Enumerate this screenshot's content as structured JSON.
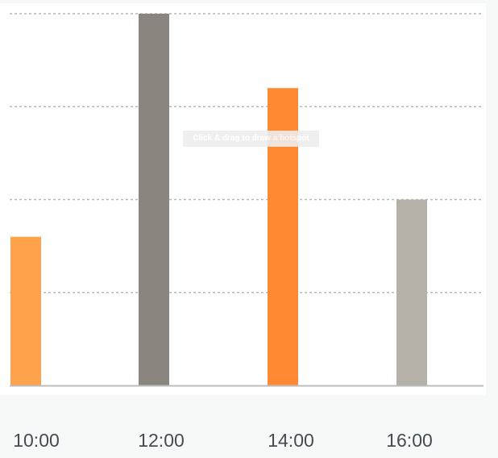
{
  "chart_data": {
    "type": "bar",
    "categories": [
      "10:00",
      "12:00",
      "14:00",
      "16:00"
    ],
    "values": [
      40,
      100,
      80,
      50
    ],
    "colors": [
      "#ffa24c",
      "#8a857e",
      "#ff8a33",
      "#b5b0a8"
    ],
    "ylim": [
      0,
      100
    ],
    "grid": true,
    "legend": "none",
    "title": "",
    "xlabel": "",
    "ylabel": ""
  },
  "tooltip": {
    "text": "Click & drag to draw a hotspot"
  }
}
